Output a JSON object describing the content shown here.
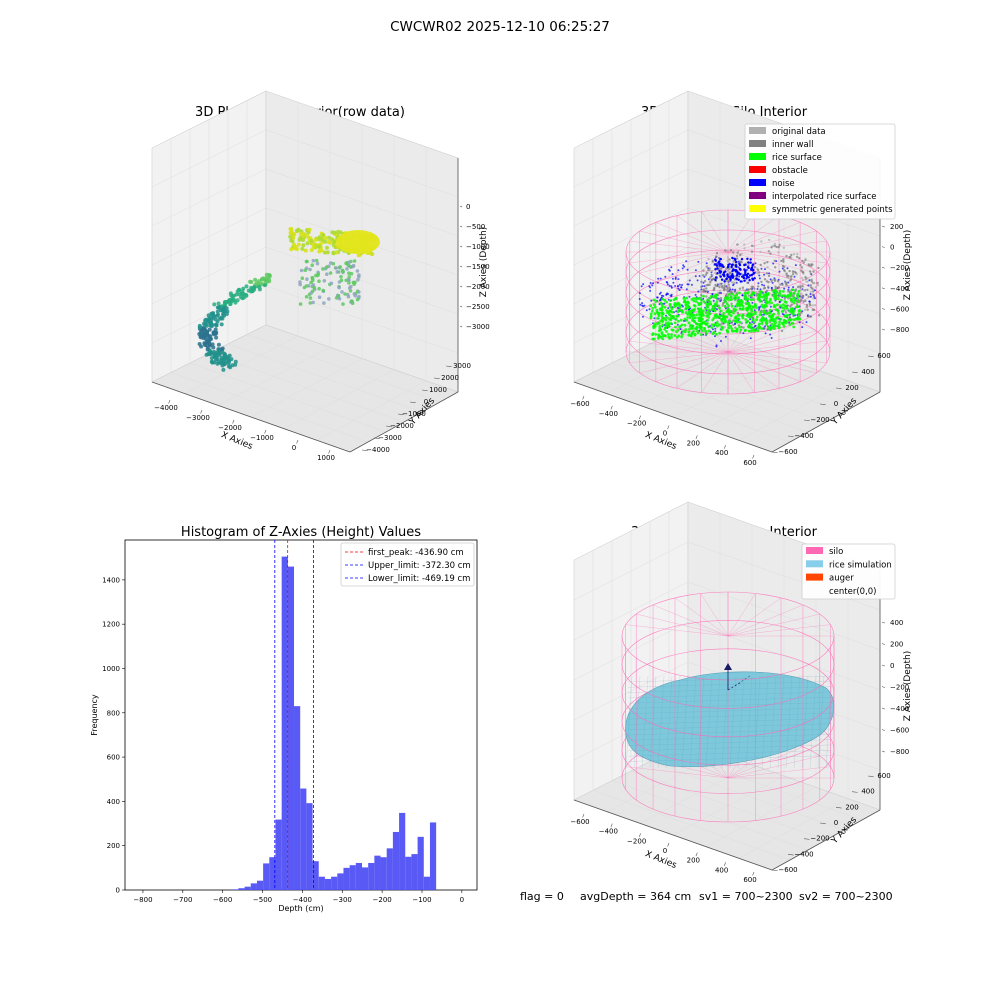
{
  "figure": {
    "suptitle": "CWCWR02 2025-12-10 06:25:27"
  },
  "colors": {
    "viridis": [
      "#2c728e",
      "#21918c",
      "#28ae80",
      "#5ec962",
      "#addc30",
      "#d8e219"
    ],
    "silo": "#ff69b4",
    "rice_sim": "#7ec8dc",
    "hist_bar": "#5050f5",
    "peak_line": "#ff0000",
    "limit_line": "#0000ff"
  },
  "panel1": {
    "title": "3D Plot of Silo Interior(row data)",
    "xlabel": "X Axies",
    "ylabel": "Y Axies",
    "zlabel": "Z Axies (Depth)",
    "xticks": [
      "−4000",
      "−3000",
      "−2000",
      "−1000",
      "0",
      "1000"
    ],
    "yticks": [
      "−4000",
      "−3000",
      "−2000",
      "−1000",
      "0",
      "1000",
      "2000",
      "3000"
    ],
    "zticks": [
      "−3000",
      "−2500",
      "−2000",
      "−1500",
      "−1000",
      "−500",
      "0"
    ]
  },
  "panel2": {
    "title": "3D classify of Silo Interior",
    "xlabel": "X Axies",
    "ylabel": "Y Axies",
    "zlabel": "Z Axies (Depth)",
    "xticks": [
      "−600",
      "−400",
      "−200",
      "0",
      "200",
      "400",
      "600"
    ],
    "yticks": [
      "−600",
      "−400",
      "−200",
      "0",
      "200",
      "400",
      "600"
    ],
    "zticks": [
      "−800",
      "−600",
      "−400",
      "−200",
      "0",
      "200"
    ],
    "legend": [
      {
        "label": "original data",
        "color": "#b0b0b0"
      },
      {
        "label": "inner wall",
        "color": "#808080"
      },
      {
        "label": "rice surface",
        "color": "#00ff00"
      },
      {
        "label": "obstacle",
        "color": "#ff0000"
      },
      {
        "label": "noise",
        "color": "#0000ff"
      },
      {
        "label": "interpolated rice surface",
        "color": "#800080"
      },
      {
        "label": "symmetric generated points",
        "color": "#ffff00"
      }
    ]
  },
  "panel4": {
    "title": "3D simulation of Silo Interior",
    "xlabel": "X Axies",
    "ylabel": "Y Axies",
    "zlabel": "Z Axies (Depth)",
    "xticks": [
      "−600",
      "−400",
      "−200",
      "0",
      "200",
      "400",
      "600"
    ],
    "yticks": [
      "−600",
      "−400",
      "−200",
      "0",
      "200",
      "400",
      "600"
    ],
    "zticks": [
      "−800",
      "−600",
      "−400",
      "−200",
      "0",
      "200",
      "400"
    ],
    "legend": [
      {
        "label": "silo",
        "color": "#ff69b4"
      },
      {
        "label": "rice simulation",
        "color": "#87ceeb"
      },
      {
        "label": "auger",
        "color": "#ff4500"
      },
      {
        "label": "center(0,0)",
        "color": "none"
      }
    ]
  },
  "footer": {
    "flag": "flag = 0",
    "avg_depth": "avgDepth = 364 cm",
    "sv1": "sv1 = 700~2300",
    "sv2": "sv2 = 700~2300"
  },
  "chart_data": [
    {
      "type": "scatter",
      "title": "3D Plot of Silo Interior(row data)",
      "xlabel": "X Axies",
      "ylabel": "Y Axies",
      "zlabel": "Z Axies (Depth)",
      "xlim": [
        -4500,
        1500
      ],
      "ylim": [
        -4000,
        3500
      ],
      "zlim": [
        -3200,
        100
      ]
    },
    {
      "type": "scatter",
      "title": "3D classify of Silo Interior",
      "xlabel": "X Axies",
      "ylabel": "Y Axies",
      "zlabel": "Z Axies (Depth)",
      "xlim": [
        -650,
        650
      ],
      "ylim": [
        -650,
        650
      ],
      "zlim": [
        -900,
        250
      ],
      "series": [
        {
          "name": "original data"
        },
        {
          "name": "inner wall"
        },
        {
          "name": "rice surface"
        },
        {
          "name": "obstacle"
        },
        {
          "name": "noise"
        },
        {
          "name": "interpolated rice surface"
        },
        {
          "name": "symmetric generated points"
        }
      ]
    },
    {
      "type": "bar",
      "title": "Histogram of Z-Axies (Height) Values",
      "xlabel": "Depth (cm)",
      "ylabel": "Frequency",
      "xlim": [
        -845,
        38
      ],
      "ylim": [
        0,
        1580
      ],
      "xticks": [
        -800,
        -700,
        -600,
        -500,
        -400,
        -300,
        -200,
        -100,
        0
      ],
      "yticks": [
        0,
        200,
        400,
        600,
        800,
        1000,
        1200,
        1400
      ],
      "bin_width": 15.5,
      "bin_start": -576,
      "values": [
        3,
        8,
        15,
        30,
        42,
        120,
        148,
        318,
        1505,
        1460,
        830,
        458,
        392,
        130,
        60,
        50,
        60,
        75,
        100,
        112,
        122,
        102,
        122,
        155,
        148,
        188,
        262,
        348,
        150,
        162,
        240,
        60,
        305
      ],
      "vlines": [
        {
          "label": "first_peak: -436.90 cm",
          "x": -436.9,
          "style": "red-dashed"
        },
        {
          "label": "Upper_limit: -372.30 cm",
          "x": -372.3,
          "style": "blue-dashed"
        },
        {
          "label": "Lower_limit: -469.19 cm",
          "x": -469.19,
          "style": "blue-dashed"
        }
      ],
      "legend": "top-right"
    },
    {
      "type": "area",
      "title": "3D simulation of Silo Interior",
      "xlabel": "X Axies",
      "ylabel": "Y Axies",
      "zlabel": "Z Axies (Depth)",
      "xlim": [
        -650,
        650
      ],
      "ylim": [
        -650,
        650
      ],
      "zlim": [
        -900,
        450
      ],
      "series": [
        {
          "name": "silo"
        },
        {
          "name": "rice simulation"
        },
        {
          "name": "auger"
        },
        {
          "name": "center(0,0)"
        }
      ]
    }
  ]
}
